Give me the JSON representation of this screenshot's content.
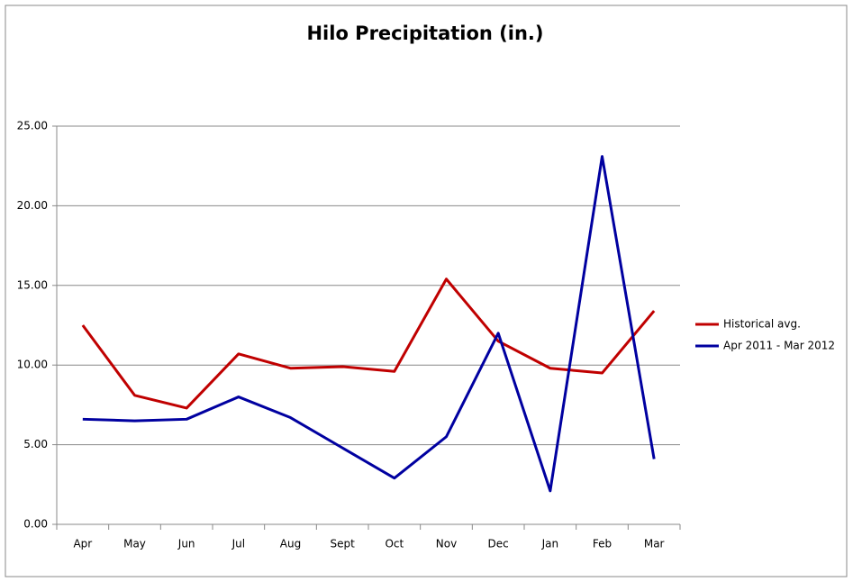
{
  "chart_data": {
    "type": "line",
    "title": "Hilo Precipitation (in.)",
    "categories": [
      "Apr",
      "May",
      "Jun",
      "Jul",
      "Aug",
      "Sept",
      "Oct",
      "Nov",
      "Dec",
      "Jan",
      "Feb",
      "Mar"
    ],
    "series": [
      {
        "name": "Historical avg.",
        "color": "#c00000",
        "values": [
          12.5,
          8.1,
          7.3,
          10.7,
          9.8,
          9.9,
          9.6,
          15.4,
          11.5,
          9.8,
          9.5,
          13.4
        ]
      },
      {
        "name": "Apr 2011 - Mar 2012",
        "color": "#0000a0",
        "values": [
          6.6,
          6.5,
          6.6,
          8.0,
          6.7,
          4.8,
          2.9,
          5.5,
          12.0,
          2.1,
          23.1,
          4.1
        ]
      }
    ],
    "ylim": [
      0,
      25
    ],
    "yticks": [
      {
        "value": 0,
        "label": "0.00"
      },
      {
        "value": 5,
        "label": "5.00"
      },
      {
        "value": 10,
        "label": "10.00"
      },
      {
        "value": 15,
        "label": "15.00"
      },
      {
        "value": 20,
        "label": "20.00"
      },
      {
        "value": 25,
        "label": "25.00"
      }
    ],
    "grid": true,
    "legend": "right"
  }
}
